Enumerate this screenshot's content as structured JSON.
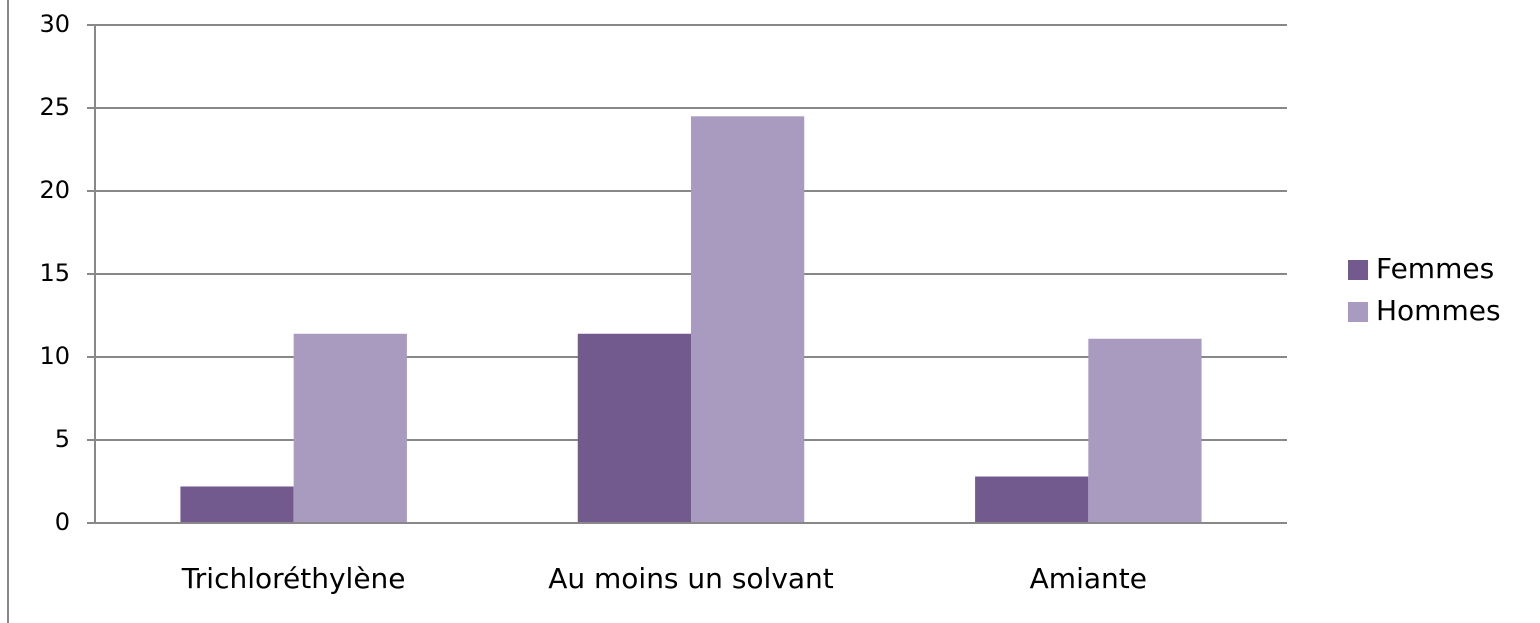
{
  "chart_data": {
    "type": "bar",
    "categories": [
      "Trichloréthylène",
      "Au moins un solvant",
      "Amiante"
    ],
    "series": [
      {
        "name": "Femmes",
        "color": "#725a8e",
        "values": [
          2.2,
          11.4,
          2.8
        ]
      },
      {
        "name": "Hommes",
        "color": "#a99bbf",
        "values": [
          11.4,
          24.5,
          11.1
        ]
      }
    ],
    "ylim": [
      0,
      30
    ],
    "yticks": [
      0,
      5,
      10,
      15,
      20,
      25,
      30
    ],
    "grid": true,
    "legend": "right"
  }
}
